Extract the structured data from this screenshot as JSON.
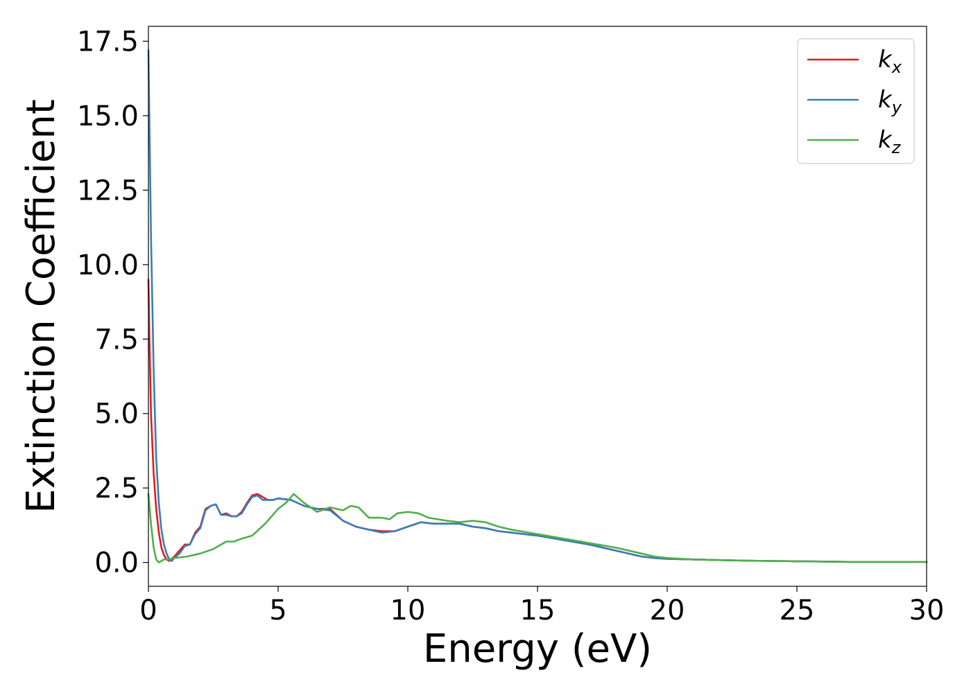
{
  "chart_data": {
    "type": "line",
    "xlabel": "Energy (eV)",
    "ylabel": "Extinction Coefficient",
    "xlim": [
      0,
      30
    ],
    "ylim": [
      -0.8,
      18.0
    ],
    "xticks": [
      0,
      5,
      10,
      15,
      20,
      25,
      30
    ],
    "yticks": [
      0.0,
      2.5,
      5.0,
      7.5,
      10.0,
      12.5,
      15.0,
      17.5
    ],
    "xtick_labels": [
      "0",
      "5",
      "10",
      "15",
      "20",
      "25",
      "30"
    ],
    "ytick_labels": [
      "0.0",
      "2.5",
      "5.0",
      "7.5",
      "10.0",
      "12.5",
      "15.0",
      "17.5"
    ],
    "grid": false,
    "legend_position": "top-right",
    "series": [
      {
        "name": "k",
        "subscript": "x",
        "color": "#e41a1c",
        "x": [
          0,
          0.05,
          0.1,
          0.2,
          0.3,
          0.4,
          0.5,
          0.6,
          0.7,
          0.8,
          1.0,
          1.2,
          1.4,
          1.6,
          1.8,
          2.0,
          2.2,
          2.4,
          2.6,
          2.8,
          3.0,
          3.2,
          3.4,
          3.6,
          3.8,
          4.0,
          4.2,
          4.4,
          4.6,
          4.8,
          5.0,
          5.5,
          6.0,
          6.5,
          7.0,
          7.5,
          8.0,
          8.5,
          9.0,
          9.5,
          10.0,
          10.5,
          11.0,
          11.5,
          12.0,
          12.5,
          13.0,
          13.5,
          14.0,
          15.0,
          16.0,
          17.0,
          18.0,
          19.0,
          19.5,
          20.0,
          21.0,
          22.0,
          23.0,
          24.0,
          25.0,
          26.0,
          27.0,
          28.0,
          29.0,
          30.0
        ],
        "y": [
          9.5,
          7.0,
          5.0,
          3.0,
          1.8,
          1.0,
          0.5,
          0.25,
          0.1,
          0.05,
          0.2,
          0.4,
          0.6,
          0.6,
          1.0,
          1.2,
          1.8,
          1.9,
          1.95,
          1.6,
          1.65,
          1.55,
          1.55,
          1.7,
          2.0,
          2.25,
          2.3,
          2.2,
          2.1,
          2.1,
          2.15,
          2.1,
          1.9,
          1.8,
          1.8,
          1.4,
          1.2,
          1.1,
          1.05,
          1.05,
          1.2,
          1.35,
          1.3,
          1.3,
          1.3,
          1.2,
          1.15,
          1.05,
          1.0,
          0.9,
          0.75,
          0.6,
          0.4,
          0.2,
          0.15,
          0.12,
          0.1,
          0.08,
          0.06,
          0.05,
          0.04,
          0.03,
          0.02,
          0.02,
          0.02,
          0.02
        ]
      },
      {
        "name": "k",
        "subscript": "y",
        "color": "#377eb8",
        "x": [
          0,
          0.05,
          0.1,
          0.2,
          0.3,
          0.4,
          0.5,
          0.6,
          0.7,
          0.8,
          0.9,
          1.0,
          1.2,
          1.4,
          1.6,
          1.8,
          2.0,
          2.2,
          2.4,
          2.6,
          2.8,
          3.0,
          3.2,
          3.4,
          3.6,
          3.8,
          4.0,
          4.2,
          4.4,
          4.6,
          4.8,
          5.0,
          5.5,
          6.0,
          6.5,
          7.0,
          7.5,
          8.0,
          8.5,
          9.0,
          9.5,
          10.0,
          10.5,
          11.0,
          11.5,
          12.0,
          12.5,
          13.0,
          13.5,
          14.0,
          15.0,
          16.0,
          17.0,
          18.0,
          19.0,
          19.5,
          20.0,
          21.0,
          22.0,
          23.0,
          24.0,
          25.0,
          26.0,
          27.0,
          28.0,
          29.0,
          30.0
        ],
        "y": [
          17.2,
          14.0,
          11.0,
          6.5,
          3.5,
          2.0,
          1.1,
          0.6,
          0.3,
          0.1,
          0.05,
          0.15,
          0.3,
          0.55,
          0.6,
          0.95,
          1.15,
          1.75,
          1.9,
          1.95,
          1.6,
          1.6,
          1.55,
          1.55,
          1.65,
          1.95,
          2.2,
          2.25,
          2.1,
          2.1,
          2.1,
          2.15,
          2.1,
          1.9,
          1.8,
          1.75,
          1.4,
          1.2,
          1.1,
          1.0,
          1.05,
          1.2,
          1.35,
          1.3,
          1.3,
          1.3,
          1.2,
          1.15,
          1.05,
          1.0,
          0.9,
          0.75,
          0.6,
          0.4,
          0.2,
          0.15,
          0.12,
          0.1,
          0.08,
          0.06,
          0.05,
          0.04,
          0.03,
          0.02,
          0.02,
          0.02,
          0.02
        ]
      },
      {
        "name": "k",
        "subscript": "z",
        "color": "#4daf4a",
        "x": [
          0,
          0.1,
          0.2,
          0.3,
          0.4,
          0.5,
          0.6,
          0.8,
          1.0,
          1.5,
          2.0,
          2.5,
          3.0,
          3.3,
          3.6,
          4.0,
          4.5,
          5.0,
          5.3,
          5.6,
          6.0,
          6.5,
          7.0,
          7.5,
          7.8,
          8.1,
          8.5,
          9.0,
          9.3,
          9.6,
          10.0,
          10.4,
          10.8,
          11.5,
          12.0,
          12.5,
          13.0,
          13.5,
          14.0,
          15.0,
          16.0,
          17.0,
          18.0,
          19.0,
          19.5,
          20.0,
          21.0,
          22.0,
          23.0,
          24.0,
          25.0,
          26.0,
          27.0,
          28.0,
          29.0,
          30.0
        ],
        "y": [
          2.3,
          1.3,
          0.5,
          0.1,
          0.0,
          0.05,
          0.1,
          0.1,
          0.15,
          0.2,
          0.3,
          0.45,
          0.7,
          0.7,
          0.8,
          0.9,
          1.3,
          1.8,
          2.0,
          2.3,
          2.0,
          1.7,
          1.85,
          1.75,
          1.9,
          1.85,
          1.5,
          1.5,
          1.45,
          1.65,
          1.7,
          1.65,
          1.5,
          1.4,
          1.35,
          1.4,
          1.35,
          1.2,
          1.1,
          0.95,
          0.8,
          0.65,
          0.5,
          0.3,
          0.2,
          0.15,
          0.1,
          0.08,
          0.06,
          0.05,
          0.04,
          0.03,
          0.02,
          0.02,
          0.02,
          0.02
        ]
      }
    ]
  }
}
